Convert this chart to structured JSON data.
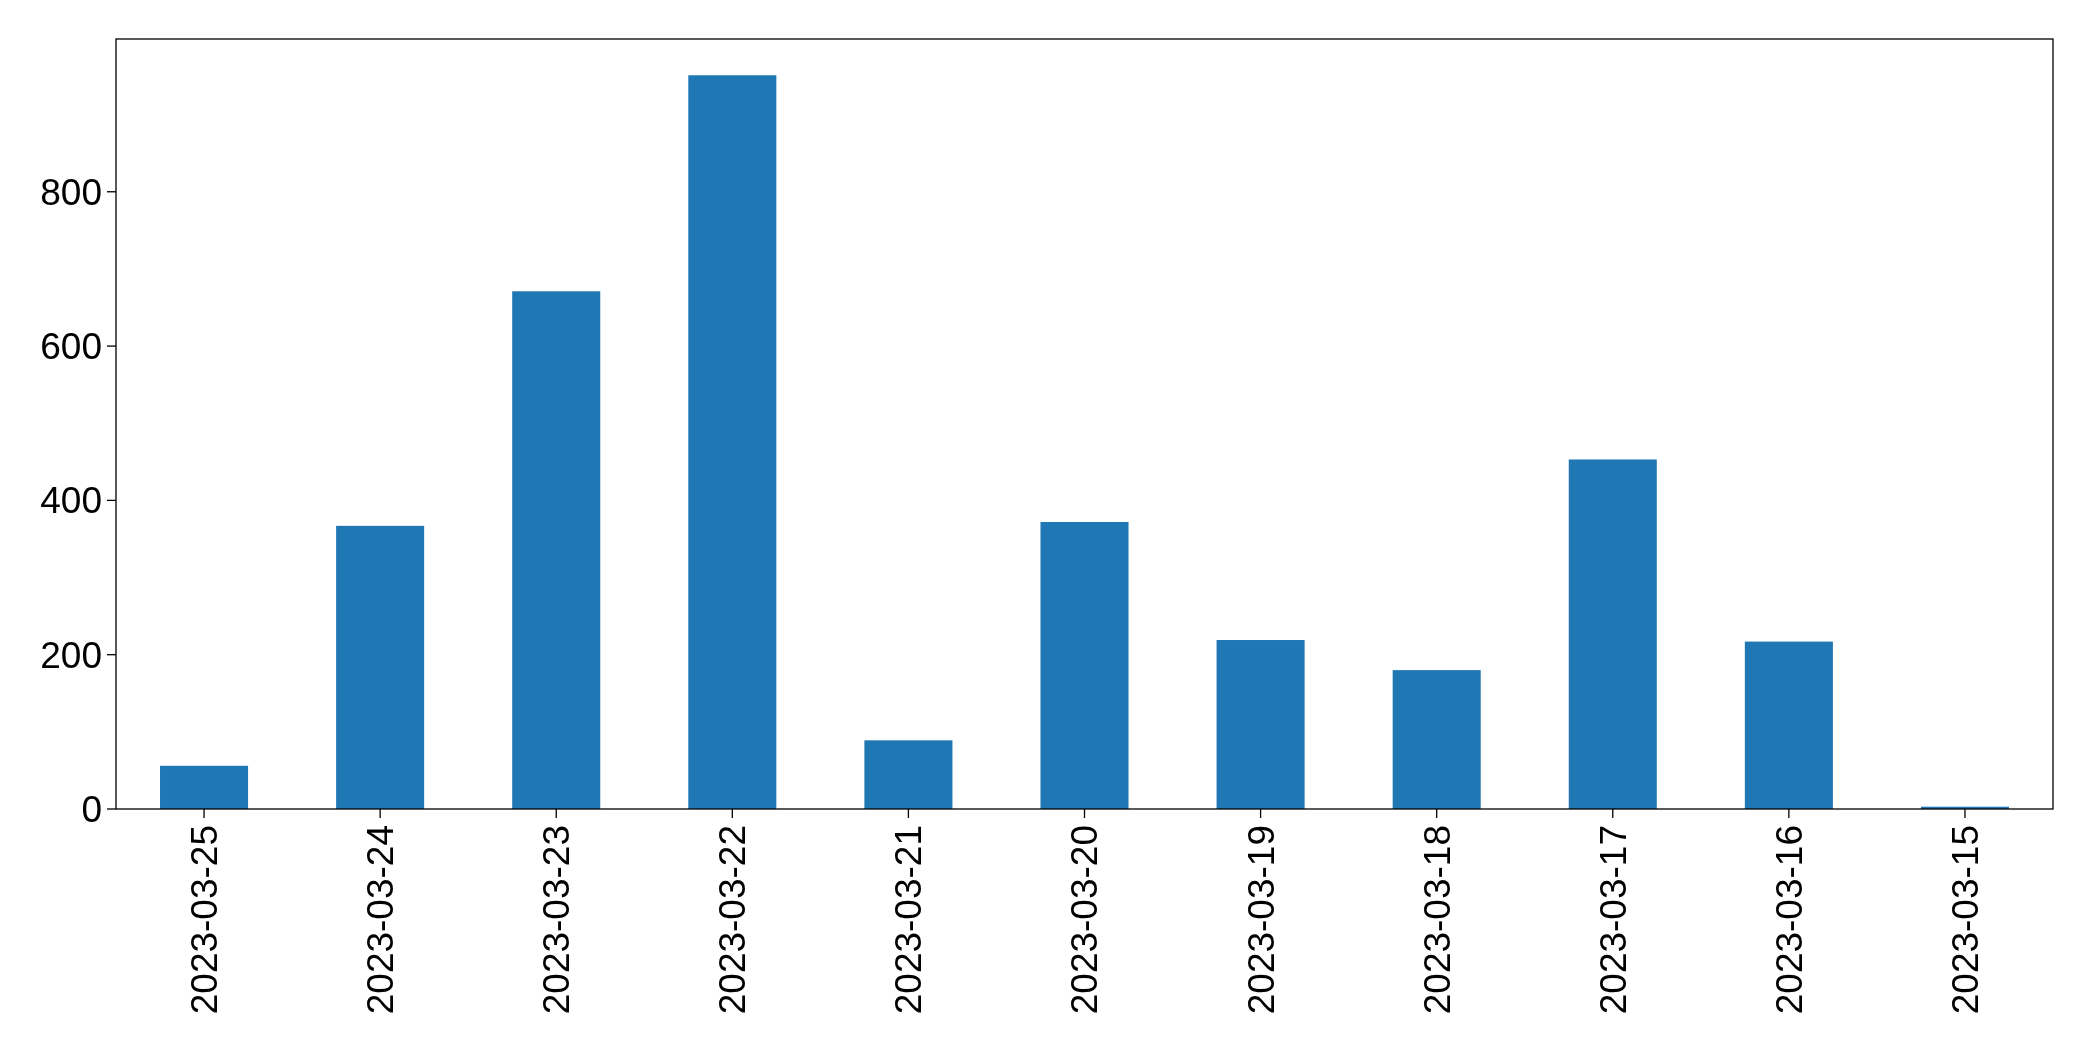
{
  "chart_data": {
    "type": "bar",
    "categories": [
      "2023-03-25",
      "2023-03-24",
      "2023-03-23",
      "2023-03-22",
      "2023-03-21",
      "2023-03-20",
      "2023-03-19",
      "2023-03-18",
      "2023-03-17",
      "2023-03-16",
      "2023-03-15"
    ],
    "values": [
      56,
      367,
      671,
      951,
      89,
      372,
      219,
      180,
      453,
      217,
      3
    ],
    "color": "#1f77b4",
    "ylim": [
      0,
      998
    ],
    "yticks": [
      0,
      200,
      400,
      600,
      800
    ]
  }
}
